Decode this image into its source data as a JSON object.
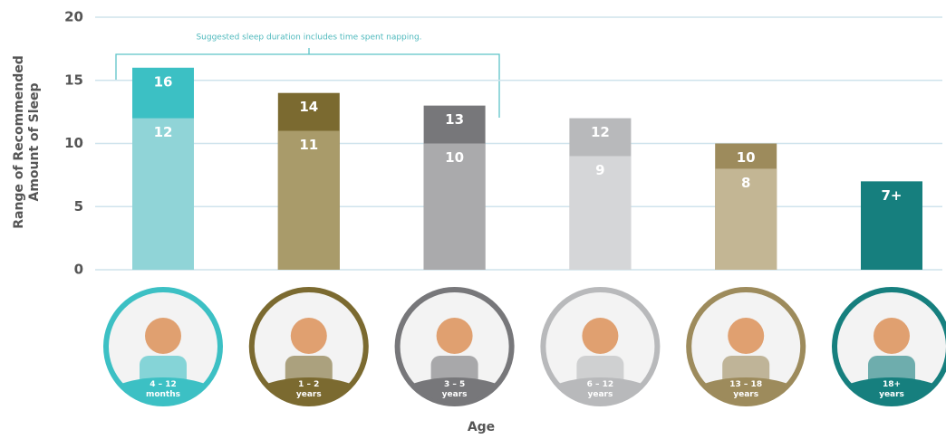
{
  "chart_data": {
    "type": "range-bar",
    "annotation": "Suggested sleep duration includes time spent napping.",
    "y_label": "Range of Recommended\nAmount of Sleep",
    "x_label": "Age",
    "categories": [
      "4 – 12\nmonths",
      "1 – 2\nyears",
      "3 – 5\nyears",
      "6 – 12\nyears",
      "13 – 18\nyears",
      "18+\nyears"
    ],
    "series": [
      {
        "values": [
          16,
          14,
          13,
          12,
          10,
          7
        ],
        "value_labels": [
          "16",
          "14",
          "13",
          "12",
          "10",
          "7+"
        ],
        "colors": [
          "#3cc0c4",
          "#7b6a30",
          "#77777a",
          "#b8b9bb",
          "#9d8b5c",
          "#167f7e"
        ]
      },
      {
        "values": [
          12,
          11,
          10,
          9,
          8,
          null
        ],
        "colors": [
          "#90d4d7",
          "#a99b6a",
          "#aaaaac",
          "#d5d6d8",
          "#c3b694",
          null
        ]
      }
    ],
    "ylim": [
      0,
      20
    ],
    "yticks": [
      0,
      5,
      10,
      15,
      20
    ],
    "grid": true
  }
}
